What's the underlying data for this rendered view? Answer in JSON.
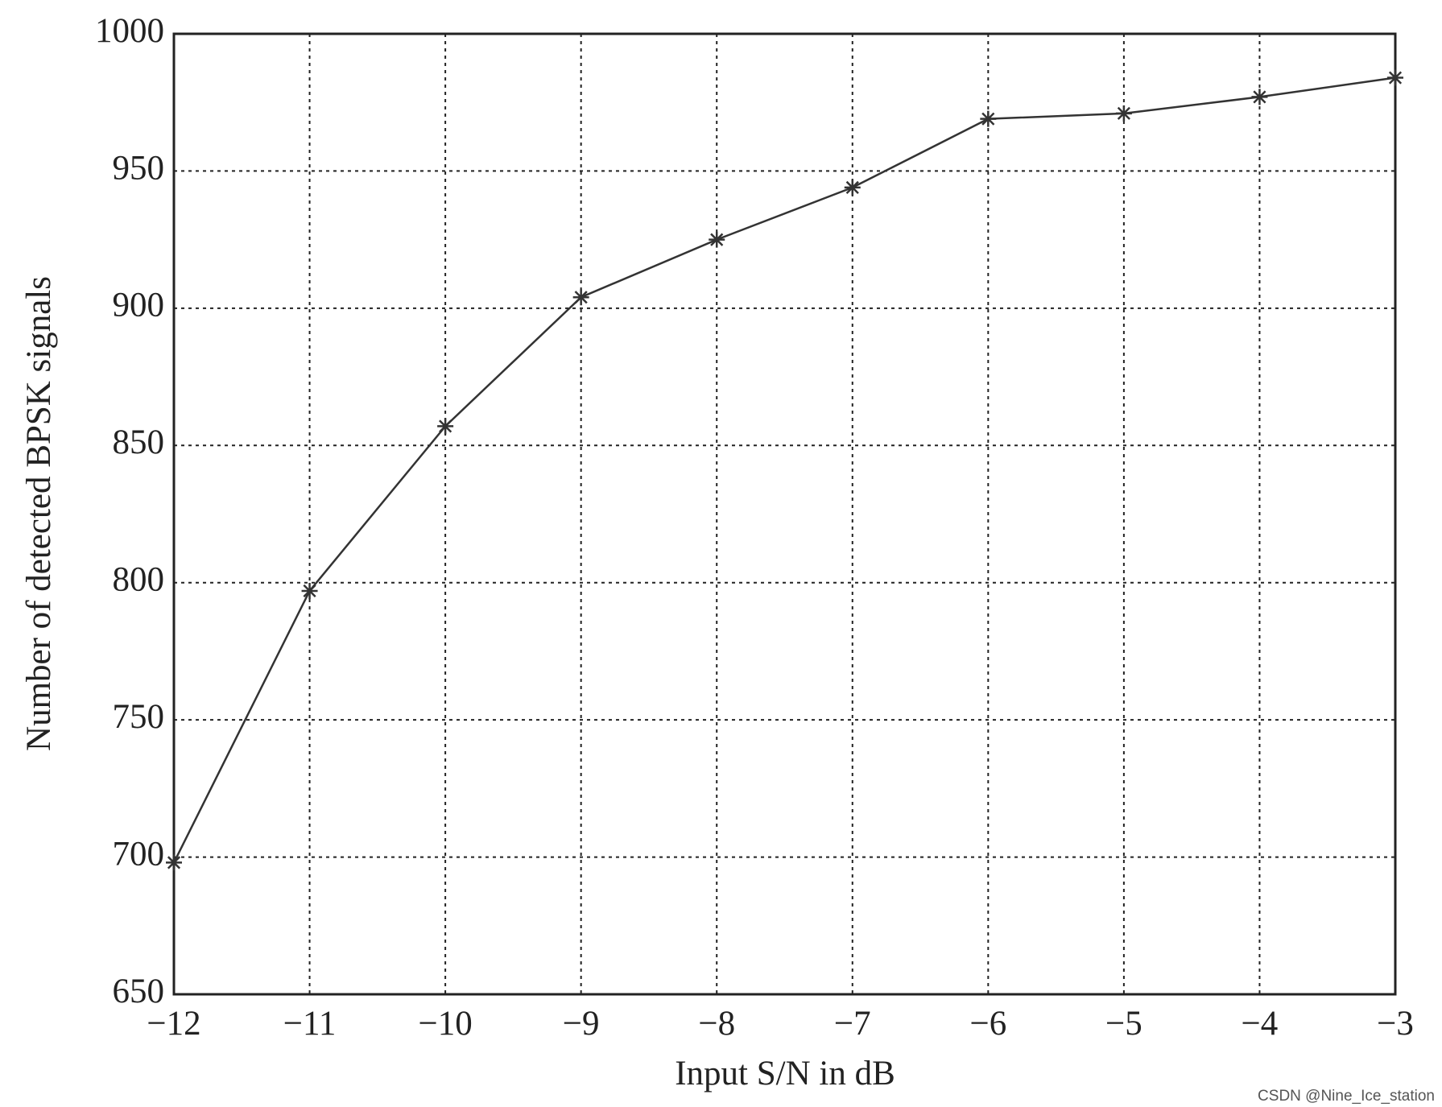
{
  "chart_data": {
    "type": "line",
    "xlabel": "Input S/N in dB",
    "ylabel": "Number of detected BPSK signals",
    "x": [
      -12,
      -11,
      -10,
      -9,
      -8,
      -7,
      -6,
      -5,
      -4,
      -3
    ],
    "series": [
      {
        "color": "#333333",
        "marker": "asterisk",
        "values": [
          698,
          797,
          857,
          904,
          925,
          944,
          969,
          971,
          977,
          984
        ]
      }
    ],
    "xlim": [
      -12,
      -3
    ],
    "xticks": [
      {
        "value": -12,
        "label": "−12"
      },
      {
        "value": -11,
        "label": "−11"
      },
      {
        "value": -10,
        "label": "−10"
      },
      {
        "value": -9,
        "label": "−9"
      },
      {
        "value": -8,
        "label": "−8"
      },
      {
        "value": -7,
        "label": "−7"
      },
      {
        "value": -6,
        "label": "−6"
      },
      {
        "value": -5,
        "label": "−5"
      },
      {
        "value": -4,
        "label": "−4"
      },
      {
        "value": -3,
        "label": "−3"
      }
    ],
    "ylim": [
      650,
      1000
    ],
    "yticks": [
      650,
      700,
      750,
      800,
      850,
      900,
      950,
      1000
    ],
    "grid": true,
    "watermark": "CSDN @Nine_Ice_station"
  }
}
